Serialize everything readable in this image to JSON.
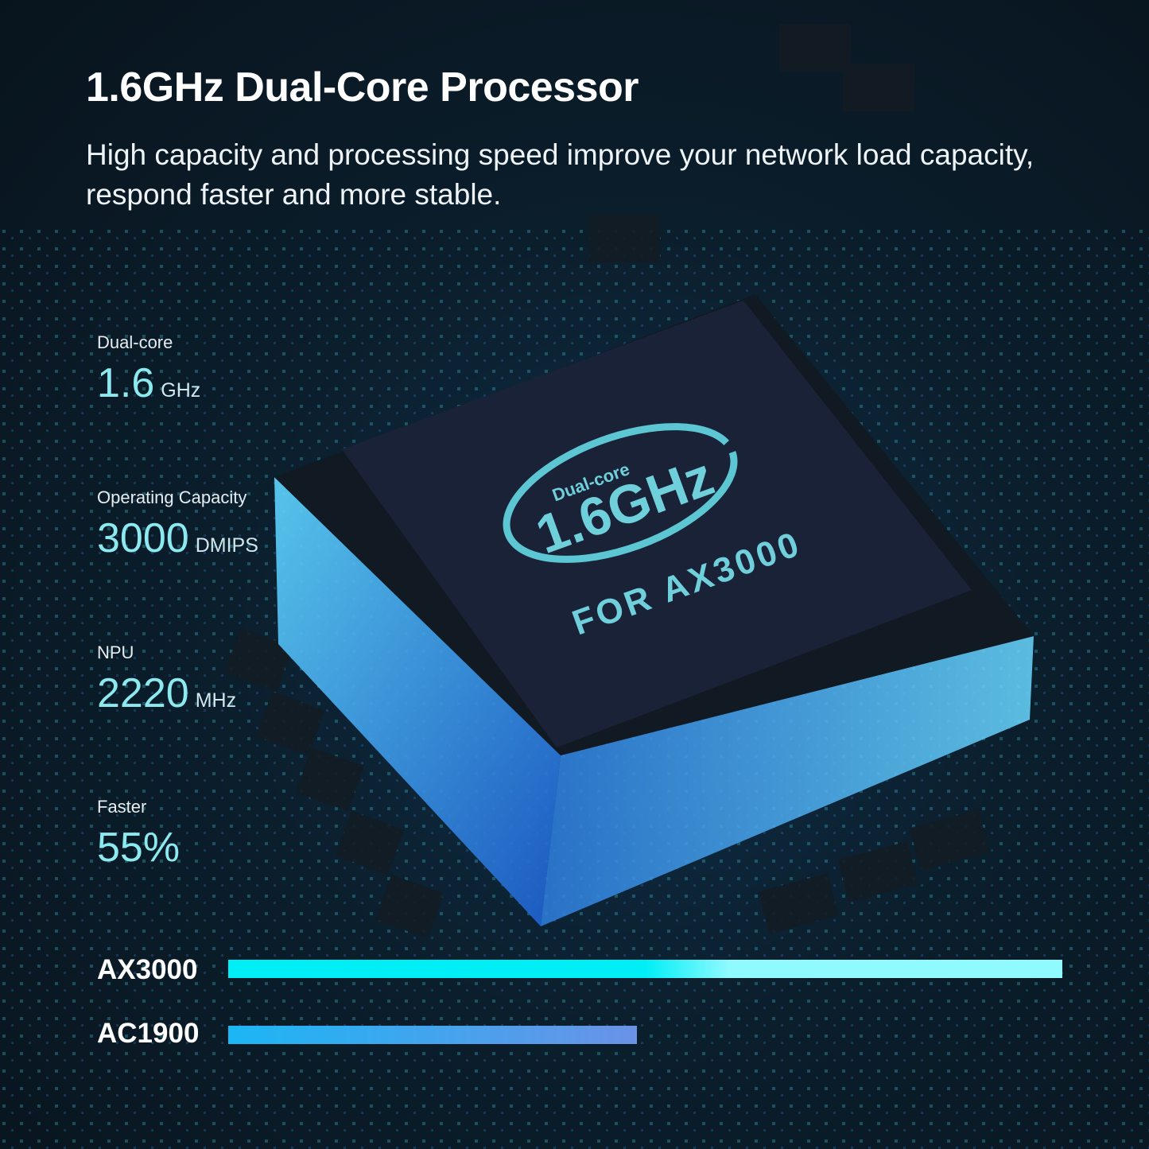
{
  "header": {
    "title": "1.6GHz Dual-Core Processor",
    "subtitle": "High capacity and processing speed improve your network load capacity, respond faster and more stable."
  },
  "chip": {
    "badge_small": "Dual-core",
    "badge_large": "1.6GHz",
    "model": "FOR AX3000"
  },
  "stats": [
    {
      "label": "Dual-core",
      "value": "1.6",
      "unit": "GHz"
    },
    {
      "label": "Operating Capacity",
      "value": "3000",
      "unit": "DMIPS"
    },
    {
      "label": "NPU",
      "value": "2220",
      "unit": "MHz"
    },
    {
      "label": "Faster",
      "value": "55%",
      "unit": ""
    }
  ],
  "comparison": [
    {
      "label": "AX3000",
      "relative_length": 1.0,
      "colors": [
        "#00eef6",
        "#8ffaff"
      ]
    },
    {
      "label": "AC1900",
      "relative_length": 0.49,
      "colors": [
        "#1cb6f5",
        "#6a92e6"
      ]
    }
  ],
  "colors": {
    "accent": "#8be9ef",
    "background": "#0b1e2c"
  }
}
